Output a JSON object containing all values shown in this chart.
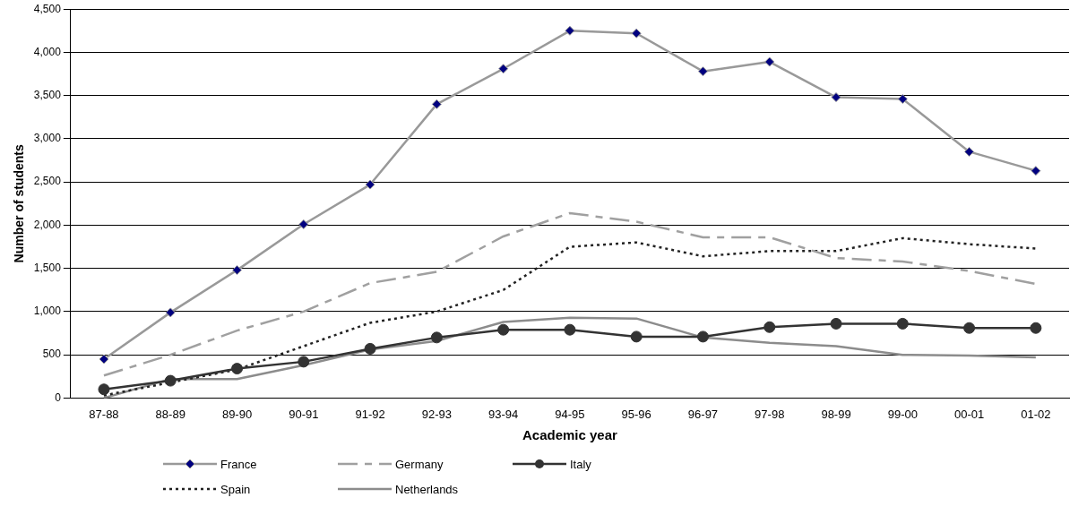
{
  "chart_data": {
    "type": "line",
    "xlabel": "Academic year",
    "ylabel": "Number of students",
    "categories": [
      "87-88",
      "88-89",
      "89-90",
      "90-91",
      "91-92",
      "92-93",
      "93-94",
      "94-95",
      "95-96",
      "96-97",
      "97-98",
      "98-99",
      "99-00",
      "00-01",
      "01-02"
    ],
    "ylim": [
      0,
      4500
    ],
    "yticks": [
      {
        "value": 0,
        "label": "0"
      },
      {
        "value": 500,
        "label": "500"
      },
      {
        "value": 1000,
        "label": "1,000"
      },
      {
        "value": 1500,
        "label": "1,500"
      },
      {
        "value": 2000,
        "label": "2,000"
      },
      {
        "value": 2500,
        "label": "2,500"
      },
      {
        "value": 3000,
        "label": "3,000"
      },
      {
        "value": 3500,
        "label": "3,500"
      },
      {
        "value": 4000,
        "label": "4,000"
      },
      {
        "value": 4500,
        "label": "4,500"
      }
    ],
    "grid": "y",
    "legend": "bottom",
    "series": [
      {
        "name": "France",
        "color": "#999999",
        "marker": "diamond",
        "line_style": "solid",
        "values": [
          450,
          990,
          1480,
          2010,
          2470,
          3400,
          3810,
          4250,
          4220,
          3780,
          3890,
          3480,
          3460,
          2850,
          2630
        ]
      },
      {
        "name": "Germany",
        "color": "#a0a0a0",
        "marker": "none",
        "line_style": "dashed",
        "values": [
          260,
          500,
          780,
          1000,
          1330,
          1460,
          1870,
          2140,
          2040,
          1860,
          1860,
          1620,
          1580,
          1470,
          1320
        ]
      },
      {
        "name": "Italy",
        "color": "#333333",
        "marker": "circle",
        "line_style": "solid",
        "values": [
          100,
          200,
          340,
          420,
          570,
          700,
          790,
          790,
          710,
          710,
          820,
          860,
          860,
          810,
          810
        ]
      },
      {
        "name": "Spain",
        "color": "#222222",
        "marker": "none",
        "line_style": "dotted",
        "values": [
          30,
          180,
          330,
          600,
          870,
          1000,
          1250,
          1750,
          1800,
          1640,
          1700,
          1700,
          1850,
          1780,
          1730
        ]
      },
      {
        "name": "Netherlands",
        "color": "#8c8c8c",
        "marker": "none",
        "line_style": "solid",
        "values": [
          0,
          220,
          220,
          380,
          560,
          660,
          880,
          930,
          920,
          700,
          640,
          600,
          500,
          490,
          470
        ]
      }
    ]
  }
}
